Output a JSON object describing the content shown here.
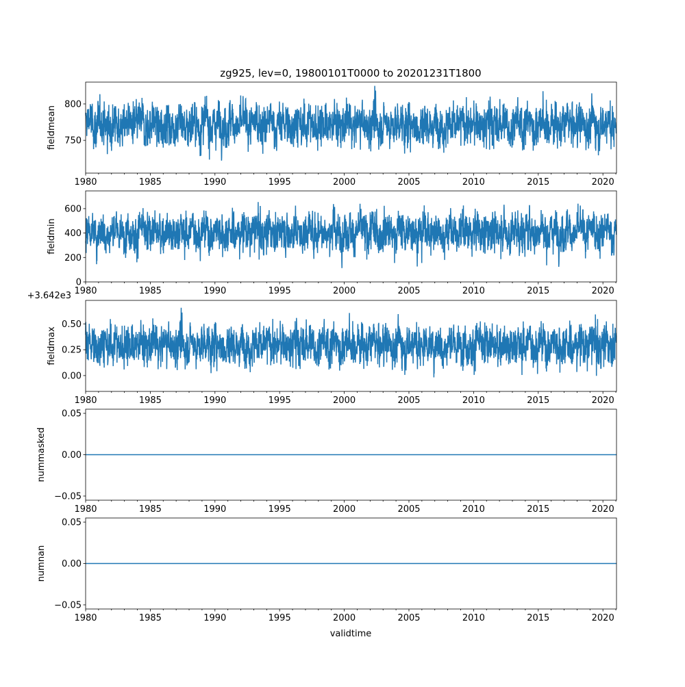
{
  "chart_data": {
    "type": "line",
    "title": "zg925, lev=0, 19800101T0000 to 20201231T1800",
    "xlabel": "validtime",
    "xlim": [
      1980,
      2021.05
    ],
    "xticks": [
      1980,
      1985,
      1990,
      1995,
      2000,
      2005,
      2010,
      2015,
      2020
    ],
    "xtick_labels": [
      "1980",
      "1985",
      "1990",
      "1995",
      "2000",
      "2005",
      "2010",
      "2015",
      "2020"
    ],
    "line_color": "#1f77b4",
    "panels": [
      {
        "ylabel": "fieldmean",
        "ylim": [
          705,
          830
        ],
        "yticks": [
          750,
          800
        ],
        "ytick_labels": [
          "750",
          "800"
        ],
        "offset_text": "",
        "center": 772,
        "spread": 22,
        "min": 710,
        "max": 825
      },
      {
        "ylabel": "fieldmin",
        "ylim": [
          0,
          745
        ],
        "yticks": [
          0,
          200,
          400,
          600
        ],
        "ytick_labels": [
          "0",
          "200",
          "400",
          "600"
        ],
        "offset_text": "",
        "center": 410,
        "spread": 120,
        "min": 35,
        "max": 715
      },
      {
        "ylabel": "fieldmax",
        "ylim": [
          -0.153,
          0.727
        ],
        "yticks": [
          0.0,
          0.25,
          0.5
        ],
        "ytick_labels": [
          "0.00",
          "0.25",
          "0.50"
        ],
        "offset_text": "+3.642e3",
        "center": 0.3,
        "spread": 0.15,
        "min": -0.12,
        "max": 0.7
      },
      {
        "ylabel": "nummasked",
        "ylim": [
          -0.055,
          0.055
        ],
        "yticks": [
          -0.05,
          0.0,
          0.05
        ],
        "ytick_labels": [
          "−0.05",
          "0.00",
          "0.05"
        ],
        "offset_text": "",
        "constant": 0
      },
      {
        "ylabel": "numnan",
        "ylim": [
          -0.055,
          0.055
        ],
        "yticks": [
          -0.05,
          0.0,
          0.05
        ],
        "ytick_labels": [
          "−0.05",
          "0.00",
          "0.05"
        ],
        "offset_text": "",
        "constant": 0
      }
    ]
  }
}
